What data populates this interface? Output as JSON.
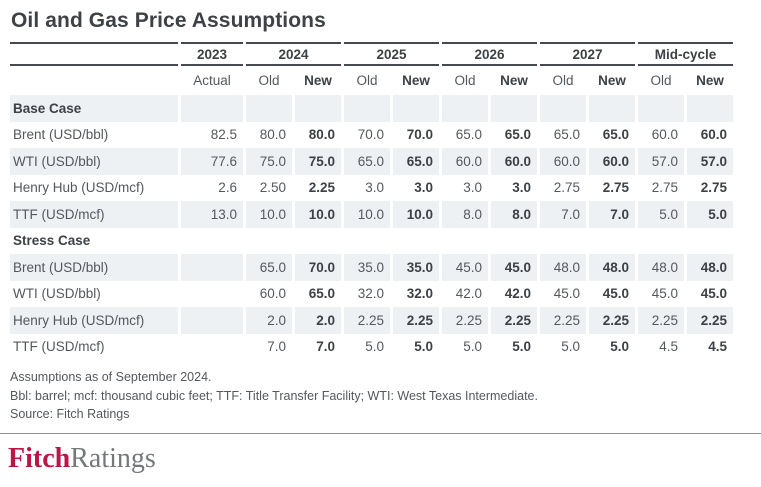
{
  "page": {
    "title": "Oil and Gas Price Assumptions"
  },
  "table": {
    "header": {
      "year_groups": [
        {
          "label": "2023",
          "subcols": [
            "Actual"
          ]
        },
        {
          "label": "2024",
          "subcols": [
            "Old",
            "New"
          ]
        },
        {
          "label": "2025",
          "subcols": [
            "Old",
            "New"
          ]
        },
        {
          "label": "2026",
          "subcols": [
            "Old",
            "New"
          ]
        },
        {
          "label": "2027",
          "subcols": [
            "Old",
            "New"
          ]
        },
        {
          "label": "Mid-cycle",
          "subcols": [
            "Old",
            "New"
          ]
        }
      ]
    },
    "sections": [
      {
        "name": "Base Case",
        "rows": [
          {
            "label": "Brent (USD/bbl)",
            "values": [
              "82.5",
              "80.0",
              "80.0",
              "70.0",
              "70.0",
              "65.0",
              "65.0",
              "65.0",
              "65.0",
              "60.0",
              "60.0"
            ]
          },
          {
            "label": "WTI (USD/bbl)",
            "values": [
              "77.6",
              "75.0",
              "75.0",
              "65.0",
              "65.0",
              "60.0",
              "60.0",
              "60.0",
              "60.0",
              "57.0",
              "57.0"
            ]
          },
          {
            "label": "Henry Hub (USD/mcf)",
            "values": [
              "2.6",
              "2.50",
              "2.25",
              "3.0",
              "3.0",
              "3.0",
              "3.0",
              "2.75",
              "2.75",
              "2.75",
              "2.75"
            ]
          },
          {
            "label": "TTF (USD/mcf)",
            "values": [
              "13.0",
              "10.0",
              "10.0",
              "10.0",
              "10.0",
              "8.0",
              "8.0",
              "7.0",
              "7.0",
              "5.0",
              "5.0"
            ]
          }
        ]
      },
      {
        "name": "Stress Case",
        "rows": [
          {
            "label": "Brent (USD/bbl)",
            "values": [
              "",
              "65.0",
              "70.0",
              "35.0",
              "35.0",
              "45.0",
              "45.0",
              "48.0",
              "48.0",
              "48.0",
              "48.0"
            ]
          },
          {
            "label": "WTI (USD/bbl)",
            "values": [
              "",
              "60.0",
              "65.0",
              "32.0",
              "32.0",
              "42.0",
              "42.0",
              "45.0",
              "45.0",
              "45.0",
              "45.0"
            ]
          },
          {
            "label": "Henry Hub (USD/mcf)",
            "values": [
              "",
              "2.0",
              "2.0",
              "2.25",
              "2.25",
              "2.25",
              "2.25",
              "2.25",
              "2.25",
              "2.25",
              "2.25"
            ]
          },
          {
            "label": "TTF (USD/mcf)",
            "values": [
              "",
              "7.0",
              "7.0",
              "5.0",
              "5.0",
              "5.0",
              "5.0",
              "5.0",
              "5.0",
              "4.5",
              "4.5"
            ]
          }
        ]
      }
    ]
  },
  "footnotes": [
    "Assumptions as of September 2024.",
    "Bbl: barrel; mcf: thousand cubic feet; TTF: Title Transfer Facility; WTI: West Texas Intermediate.",
    "Source: Fitch Ratings"
  ],
  "logo": {
    "primary": "Fitch",
    "secondary": "Ratings"
  },
  "colors": {
    "stripe": "#edf1f4",
    "border_dark": "#46494d",
    "text_body": "#54585c",
    "text_strong": "#3d4145",
    "accent_red": "#bb1648",
    "logo_gray": "#75787b",
    "rule_gray": "#909395",
    "title_color": "#3e4247"
  }
}
